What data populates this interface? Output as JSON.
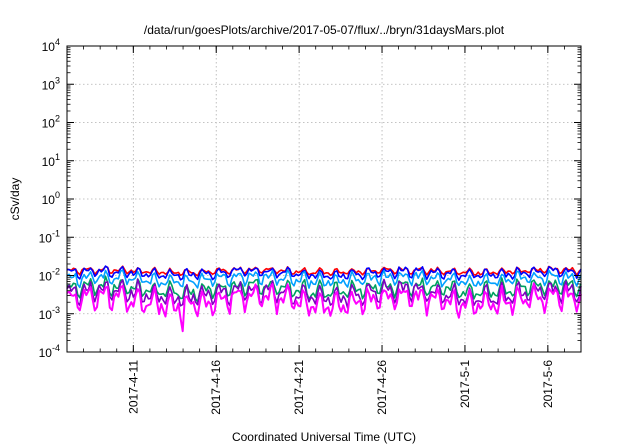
{
  "chart_data": {
    "type": "line",
    "title": "/data/run/goesPlots/archive/2017-05-07/flux/../bryn/31daysMars.plot",
    "xlabel": "Coordinated Universal Time (UTC)",
    "ylabel": "cSv/day",
    "yscale": "log",
    "ylim": [
      0.0001,
      10000
    ],
    "y_ticks": [
      {
        "base": "10",
        "exp": "-4",
        "value": 0.0001
      },
      {
        "base": "10",
        "exp": "-3",
        "value": 0.001
      },
      {
        "base": "10",
        "exp": "-2",
        "value": 0.01
      },
      {
        "base": "10",
        "exp": "-1",
        "value": 0.1
      },
      {
        "base": "10",
        "exp": "0",
        "value": 1
      },
      {
        "base": "10",
        "exp": "1",
        "value": 10
      },
      {
        "base": "10",
        "exp": "2",
        "value": 100
      },
      {
        "base": "10",
        "exp": "3",
        "value": 1000
      },
      {
        "base": "10",
        "exp": "4",
        "value": 10000
      }
    ],
    "xlim": [
      "2017-04-07",
      "2017-05-08"
    ],
    "x_ticks": [
      "2017-4-11",
      "2017-4-16",
      "2017-4-21",
      "2017-4-26",
      "2017-5-1",
      "2017-5-6"
    ],
    "grid": true,
    "series": [
      {
        "color": "#ff0000",
        "base_value": 0.013
      },
      {
        "color": "#0000ff",
        "base_value": 0.0115
      },
      {
        "color": "#00a0ff",
        "base_value": 0.008
      },
      {
        "color": "#00a060",
        "base_value": 0.0045
      },
      {
        "color": "#8000c0",
        "base_value": 0.0033
      },
      {
        "color": "#ff00ff",
        "base_value": 0.0022
      }
    ],
    "min_spike": {
      "date": "2017-04-14",
      "value": 0.00035
    }
  }
}
